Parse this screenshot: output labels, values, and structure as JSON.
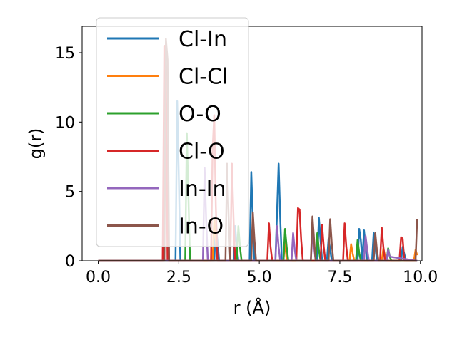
{
  "chart_data": {
    "type": "line",
    "title": "",
    "xlabel": "r (Å)",
    "ylabel": "g(r)",
    "xlim": [
      -0.5,
      10.05
    ],
    "ylim": [
      0,
      16.9
    ],
    "xticks": [
      {
        "value": 0.0,
        "label": "0.0"
      },
      {
        "value": 2.5,
        "label": "2.5"
      },
      {
        "value": 5.0,
        "label": "5.0"
      },
      {
        "value": 7.5,
        "label": "7.5"
      },
      {
        "value": 10.0,
        "label": "10.0"
      }
    ],
    "yticks": [
      {
        "value": 0,
        "label": "0"
      },
      {
        "value": 5,
        "label": "5"
      },
      {
        "value": 10,
        "label": "10"
      },
      {
        "value": 15,
        "label": "15"
      }
    ],
    "grid": false,
    "legend_position": "upper-left",
    "series": [
      {
        "name": "Cl-In",
        "color": "#1f77b4",
        "x": [
          0,
          2.4,
          2.45,
          2.5,
          2.55,
          3.6,
          3.65,
          3.7,
          3.75,
          4.2,
          4.25,
          4.3,
          4.35,
          4.7,
          4.75,
          4.8,
          4.85,
          5.5,
          5.55,
          5.6,
          5.65,
          5.7,
          6.8,
          6.85,
          6.9,
          6.95,
          7.1,
          7.15,
          7.2,
          7.25,
          8.05,
          8.1,
          8.15,
          8.2,
          8.25,
          8.3,
          8.35,
          8.4,
          8.5,
          8.55,
          8.6,
          8.65,
          8.7,
          9.4,
          9.45,
          9.5,
          9.55,
          9.9
        ],
        "y": [
          0,
          0,
          11.5,
          6.0,
          0,
          0,
          2.5,
          1.5,
          0,
          0,
          2.5,
          1.0,
          0,
          0,
          6.4,
          3.0,
          0,
          0,
          3.5,
          7.0,
          3.0,
          0,
          0,
          3.1,
          1.5,
          0,
          0,
          1.6,
          0.8,
          0,
          0,
          2.3,
          1.5,
          0,
          2.2,
          1.0,
          0,
          0,
          0,
          2.0,
          1.2,
          0,
          0,
          0,
          1.0,
          0.5,
          0,
          0
        ]
      },
      {
        "name": "Cl-Cl",
        "color": "#ff7f0e",
        "x": [
          0,
          3.55,
          3.6,
          3.65,
          3.7,
          5.75,
          5.8,
          5.85,
          7.8,
          7.85,
          7.9,
          7.95,
          8.8,
          8.85,
          8.9,
          8.95,
          9.8,
          9.85,
          9.9
        ],
        "y": [
          0,
          0,
          3.0,
          1.5,
          0,
          0,
          1.5,
          0,
          0,
          1.2,
          0.5,
          0,
          0,
          0.9,
          0.4,
          0,
          0,
          0.8,
          0.4
        ]
      },
      {
        "name": "O-O",
        "color": "#2ca02c",
        "x": [
          0,
          2.7,
          2.75,
          2.8,
          2.85,
          4.3,
          4.35,
          4.4,
          4.45,
          5.75,
          5.8,
          5.85,
          5.9,
          6.75,
          6.8,
          6.85,
          6.9,
          8.0,
          8.05,
          8.1,
          8.15,
          8.95,
          9.0,
          9.05,
          9.1,
          9.9
        ],
        "y": [
          0,
          0,
          9.2,
          4.5,
          0,
          0,
          2.5,
          1.0,
          0,
          0,
          2.3,
          1.0,
          0,
          0,
          2.0,
          0.8,
          0,
          0,
          1.5,
          0.6,
          0,
          0,
          0.9,
          0.3,
          0,
          0
        ]
      },
      {
        "name": "Cl-O",
        "color": "#d62728",
        "x": [
          0,
          2.0,
          2.05,
          2.1,
          2.15,
          3.5,
          3.55,
          3.6,
          3.65,
          3.7,
          4.1,
          4.15,
          4.2,
          4.25,
          5.25,
          5.3,
          5.35,
          5.4,
          6.15,
          6.2,
          6.25,
          6.3,
          6.35,
          6.9,
          6.95,
          7.0,
          7.05,
          7.6,
          7.65,
          7.7,
          7.75,
          8.75,
          8.8,
          8.85,
          8.9,
          9.35,
          9.4,
          9.45,
          9.5,
          9.9
        ],
        "y": [
          0,
          0,
          15.5,
          14.0,
          0,
          0,
          8.0,
          10.5,
          4.0,
          0,
          0,
          7.0,
          3.0,
          0,
          0,
          2.7,
          1.0,
          0,
          0,
          3.8,
          3.7,
          1.5,
          0,
          0,
          2.6,
          1.0,
          0,
          0,
          2.7,
          1.0,
          0,
          0,
          2.4,
          1.0,
          0,
          0,
          1.7,
          1.6,
          0,
          0
        ]
      },
      {
        "name": "In-In",
        "color": "#9467bd",
        "x": [
          0,
          3.25,
          3.3,
          3.35,
          3.4,
          5.5,
          5.55,
          5.6,
          5.65,
          6.0,
          6.05,
          6.1,
          6.15,
          6.6,
          6.65,
          6.7,
          6.75,
          8.25,
          8.3,
          8.35,
          8.4,
          8.95,
          9.0,
          9.05,
          9.9
        ],
        "y": [
          0,
          0,
          6.7,
          3.0,
          0,
          0,
          2.5,
          1.0,
          0,
          0,
          2.0,
          0.8,
          0,
          0,
          2.0,
          1.0,
          0,
          0,
          1.8,
          0.8,
          0,
          0,
          0.8,
          0.3,
          0
        ]
      },
      {
        "name": "In-O",
        "color": "#8c564b",
        "x": [
          0,
          2.05,
          2.1,
          2.15,
          2.2,
          3.95,
          4.0,
          4.05,
          4.1,
          4.75,
          4.8,
          4.85,
          4.9,
          6.6,
          6.65,
          6.7,
          6.75,
          7.15,
          7.2,
          7.25,
          7.3,
          8.55,
          8.6,
          8.65,
          8.7,
          9.85,
          9.9
        ],
        "y": [
          0,
          0,
          16.0,
          14.5,
          0,
          0,
          7.0,
          3.0,
          0,
          0,
          3.5,
          1.5,
          0,
          0,
          3.2,
          1.5,
          0,
          0,
          3.0,
          1.2,
          0,
          0,
          2.0,
          0.8,
          0,
          0,
          3.0
        ]
      }
    ]
  }
}
